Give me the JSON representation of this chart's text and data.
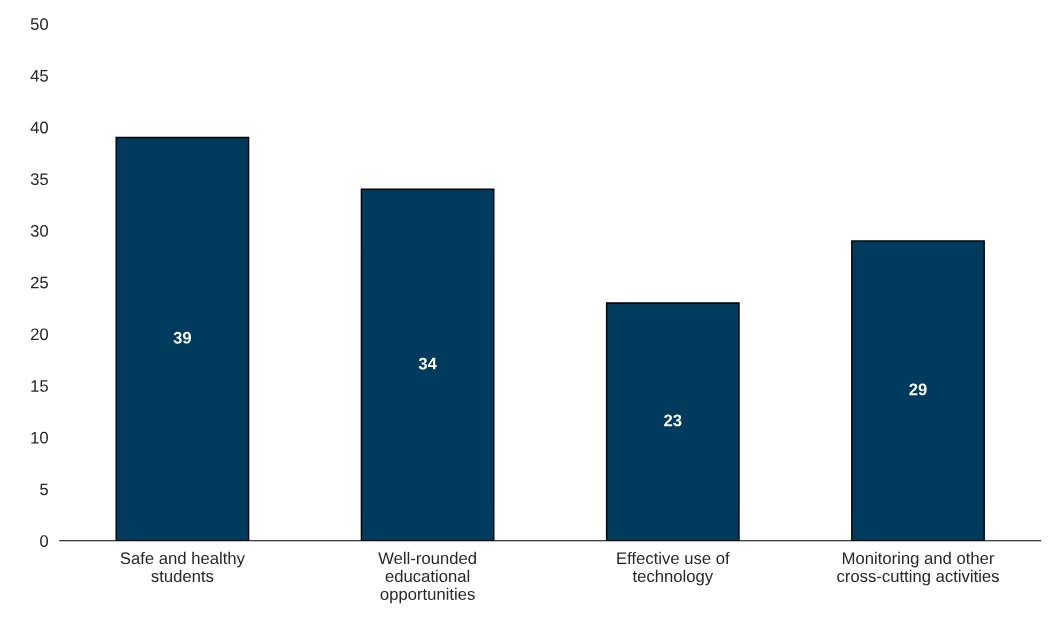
{
  "chart_data": {
    "type": "bar",
    "categories": [
      "Safe and healthy\nstudents",
      "Well-rounded\neducational\nopportunities",
      "Effective use of\ntechnology",
      "Monitoring and other\ncross-cutting activities"
    ],
    "values": [
      39,
      34,
      23,
      29
    ],
    "color": "#003a5d",
    "ylim": [
      0,
      50
    ],
    "yticks": [
      0,
      5,
      10,
      15,
      20,
      25,
      30,
      35,
      40,
      45,
      50
    ],
    "data_labels": true,
    "grid": false,
    "legend": false
  }
}
